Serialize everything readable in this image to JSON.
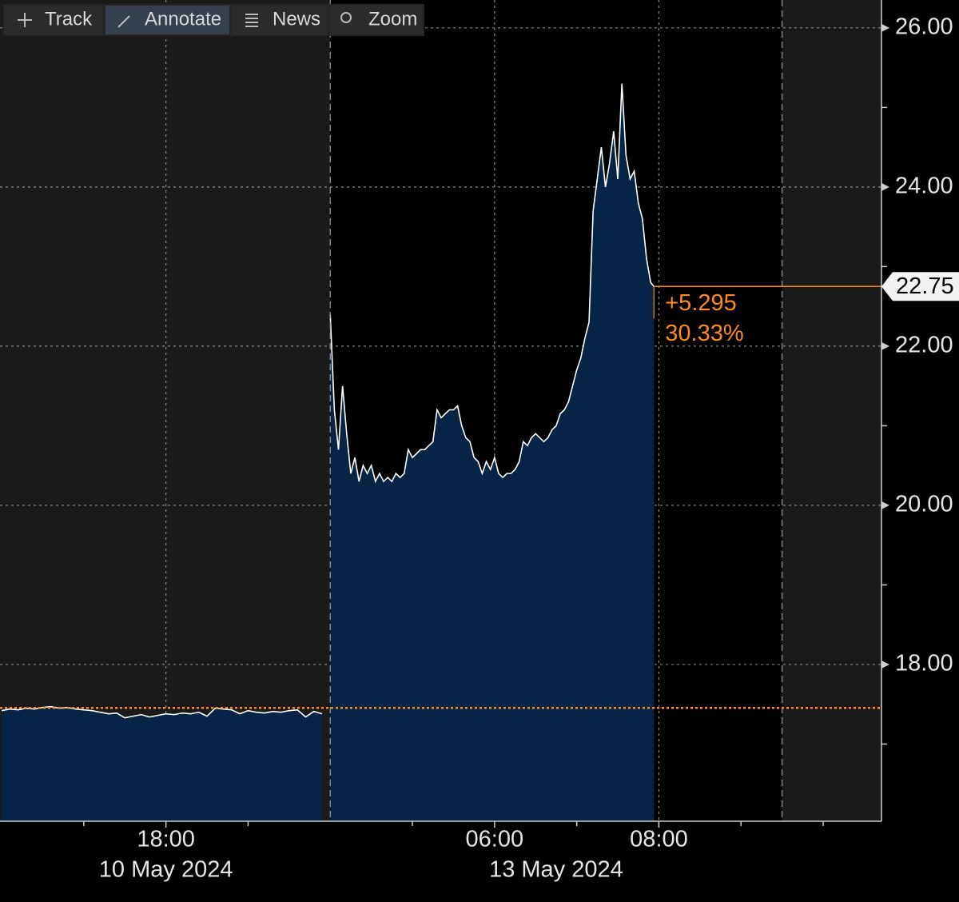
{
  "toolbar": [
    "Track",
    "Annotate",
    "News",
    "Zoom"
  ],
  "chart_data": {
    "type": "line",
    "sessions": [
      {
        "label": "10 May 2024",
        "start": 0,
        "end": 4
      },
      {
        "label": "13 May 2024",
        "start": 4,
        "end": 9.5
      }
    ],
    "xlim": [
      -0.02,
      10.71
    ],
    "xticks": [
      {
        "value": 2,
        "label": "18:00"
      },
      {
        "value": 6,
        "label": "06:00"
      },
      {
        "value": 8,
        "label": "08:00"
      }
    ],
    "xminorticks": [
      1,
      3,
      5,
      7,
      9,
      10
    ],
    "ylim": [
      16.03,
      26.35
    ],
    "yticks": [
      {
        "value": 26,
        "label": "26.00"
      },
      {
        "value": 24,
        "label": "24.00"
      },
      {
        "value": 22,
        "label": "22.00"
      },
      {
        "value": 20,
        "label": "20.00"
      },
      {
        "value": 18,
        "label": "18.00"
      }
    ],
    "yminorticks": [
      17,
      19,
      21,
      23,
      25
    ],
    "grid": true,
    "previous_close": 17.455,
    "last_price": {
      "value": 22.75,
      "label": "22.75"
    },
    "change_labels": [
      "+5.295",
      "30.33%"
    ],
    "series": [
      {
        "name": "Price",
        "color": "#ffffff",
        "area_color": "#062445",
        "x": [
          0,
          0.1,
          0.2,
          0.3,
          0.4,
          0.5,
          0.6,
          0.7,
          0.8,
          0.9,
          1,
          1.1,
          1.2,
          1.3,
          1.4,
          1.5,
          1.6,
          1.7,
          1.8,
          1.9,
          2,
          2.1,
          2.2,
          2.3,
          2.4,
          2.5,
          2.6,
          2.7,
          2.8,
          2.9,
          3,
          3.1,
          3.2,
          3.3,
          3.4,
          3.5,
          3.6,
          3.7,
          3.8,
          3.9,
          3.95,
          4,
          4.05,
          4.1,
          4.15,
          4.2,
          4.25,
          4.3,
          4.35,
          4.4,
          4.45,
          4.5,
          4.55,
          4.6,
          4.65,
          4.7,
          4.75,
          4.8,
          4.85,
          4.9,
          4.95,
          5,
          5.05,
          5.1,
          5.15,
          5.2,
          5.25,
          5.3,
          5.35,
          5.4,
          5.45,
          5.5,
          5.55,
          5.6,
          5.65,
          5.7,
          5.75,
          5.8,
          5.85,
          5.9,
          5.95,
          6,
          6.05,
          6.1,
          6.15,
          6.2,
          6.25,
          6.3,
          6.35,
          6.4,
          6.45,
          6.5,
          6.55,
          6.6,
          6.65,
          6.7,
          6.75,
          6.8,
          6.85,
          6.9,
          6.95,
          7,
          7.05,
          7.1,
          7.15,
          7.2,
          7.25,
          7.3,
          7.35,
          7.4,
          7.45,
          7.5,
          7.55,
          7.6,
          7.65,
          7.7,
          7.75,
          7.8,
          7.85,
          7.9,
          7.94
        ],
        "values": [
          17.42,
          17.44,
          17.43,
          17.45,
          17.44,
          17.46,
          17.47,
          17.45,
          17.46,
          17.44,
          17.43,
          17.42,
          17.4,
          17.38,
          17.39,
          17.33,
          17.35,
          17.37,
          17.34,
          17.36,
          17.38,
          17.37,
          17.39,
          17.38,
          17.4,
          17.35,
          17.45,
          17.44,
          17.43,
          17.38,
          17.42,
          17.4,
          17.39,
          17.41,
          17.4,
          17.42,
          17.43,
          17.34,
          17.41,
          17.38,
          null,
          22.4,
          21.2,
          20.7,
          21.5,
          20.9,
          20.4,
          20.6,
          20.3,
          20.5,
          20.4,
          20.5,
          20.3,
          20.4,
          20.3,
          20.35,
          20.3,
          20.4,
          20.35,
          20.4,
          20.7,
          20.6,
          20.65,
          20.7,
          20.7,
          20.75,
          20.8,
          21.2,
          21.1,
          21.15,
          21.2,
          21.2,
          21.25,
          21,
          20.85,
          20.8,
          20.6,
          20.55,
          20.4,
          20.55,
          20.45,
          20.6,
          20.4,
          20.35,
          20.4,
          20.4,
          20.45,
          20.55,
          20.8,
          20.75,
          20.85,
          20.9,
          20.85,
          20.8,
          20.85,
          20.95,
          21,
          21.15,
          21.2,
          21.3,
          21.5,
          21.7,
          21.85,
          22.1,
          22.3,
          23.7,
          24.1,
          24.5,
          24,
          24.3,
          24.7,
          24.1,
          25.3,
          24.4,
          24.1,
          24.2,
          23.8,
          23.6,
          23.1,
          22.8,
          22.75
        ]
      }
    ],
    "reference_color": "#ff8c1a"
  }
}
